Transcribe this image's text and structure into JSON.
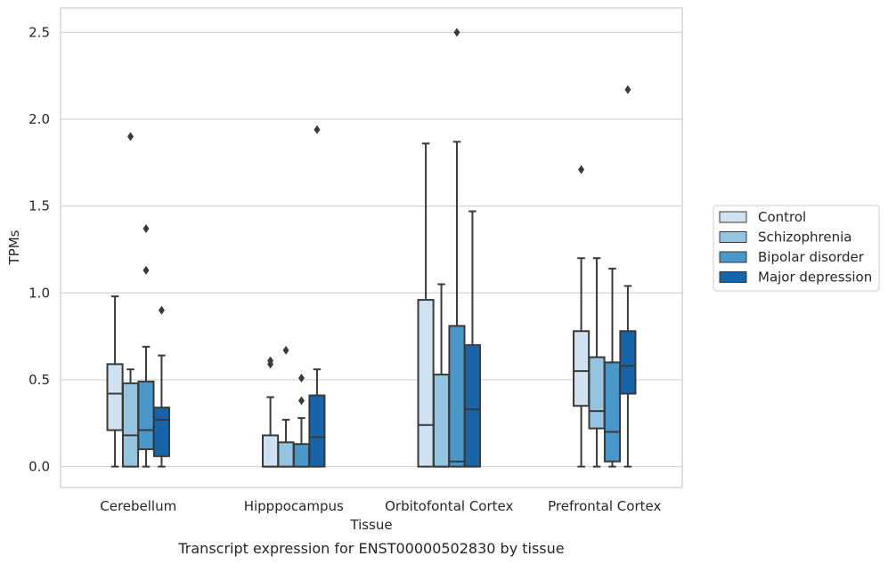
{
  "chart_data": {
    "type": "box",
    "xlabel": "Tissue",
    "ylabel": "TPMs",
    "caption": "Transcript expression for ENST00000502830 by tissue",
    "ylim": [
      -0.12,
      2.64
    ],
    "yticks": [
      0.0,
      0.5,
      1.0,
      1.5,
      2.0,
      2.5
    ],
    "ytick_labels": [
      "0.0",
      "0.5",
      "1.0",
      "1.5",
      "2.0",
      "2.5"
    ],
    "grid": "horizontal",
    "legend_position": "right",
    "categories": [
      "Cerebellum",
      "Hipppocampus",
      "Orbitofontal Cortex",
      "Prefrontal Cortex"
    ],
    "series": [
      {
        "name": "Control",
        "color": "#d0e1f2",
        "boxes": [
          {
            "whisker_low": 0.0,
            "q1": 0.21,
            "median": 0.42,
            "q3": 0.59,
            "whisker_high": 0.98,
            "outliers": []
          },
          {
            "whisker_low": 0.0,
            "q1": 0.0,
            "median": 0.0,
            "q3": 0.18,
            "whisker_high": 0.4,
            "outliers": [
              0.59,
              0.61
            ]
          },
          {
            "whisker_low": 0.0,
            "q1": 0.0,
            "median": 0.24,
            "q3": 0.96,
            "whisker_high": 1.86,
            "outliers": []
          },
          {
            "whisker_low": 0.0,
            "q1": 0.35,
            "median": 0.55,
            "q3": 0.78,
            "whisker_high": 1.2,
            "outliers": [
              1.71
            ]
          }
        ]
      },
      {
        "name": "Schizophrenia",
        "color": "#94c4df",
        "boxes": [
          {
            "whisker_low": 0.0,
            "q1": 0.0,
            "median": 0.18,
            "q3": 0.48,
            "whisker_high": 0.56,
            "outliers": [
              1.9
            ]
          },
          {
            "whisker_low": 0.0,
            "q1": 0.0,
            "median": 0.0,
            "q3": 0.14,
            "whisker_high": 0.27,
            "outliers": [
              0.67
            ]
          },
          {
            "whisker_low": 0.0,
            "q1": 0.0,
            "median": 0.0,
            "q3": 0.53,
            "whisker_high": 1.05,
            "outliers": []
          },
          {
            "whisker_low": 0.0,
            "q1": 0.22,
            "median": 0.32,
            "q3": 0.63,
            "whisker_high": 1.2,
            "outliers": []
          }
        ]
      },
      {
        "name": "Bipolar disorder",
        "color": "#4a98c9",
        "boxes": [
          {
            "whisker_low": 0.0,
            "q1": 0.1,
            "median": 0.21,
            "q3": 0.49,
            "whisker_high": 0.69,
            "outliers": [
              1.13,
              1.37
            ]
          },
          {
            "whisker_low": 0.0,
            "q1": 0.0,
            "median": 0.0,
            "q3": 0.13,
            "whisker_high": 0.28,
            "outliers": [
              0.38,
              0.51
            ]
          },
          {
            "whisker_low": 0.0,
            "q1": 0.0,
            "median": 0.03,
            "q3": 0.81,
            "whisker_high": 1.87,
            "outliers": [
              2.5
            ]
          },
          {
            "whisker_low": 0.0,
            "q1": 0.03,
            "median": 0.2,
            "q3": 0.6,
            "whisker_high": 1.14,
            "outliers": []
          }
        ]
      },
      {
        "name": "Major depression",
        "color": "#1764ab",
        "boxes": [
          {
            "whisker_low": 0.0,
            "q1": 0.06,
            "median": 0.27,
            "q3": 0.34,
            "whisker_high": 0.64,
            "outliers": [
              0.9
            ]
          },
          {
            "whisker_low": 0.0,
            "q1": 0.0,
            "median": 0.17,
            "q3": 0.41,
            "whisker_high": 0.56,
            "outliers": [
              1.94
            ]
          },
          {
            "whisker_low": 0.0,
            "q1": 0.0,
            "median": 0.33,
            "q3": 0.7,
            "whisker_high": 1.47,
            "outliers": []
          },
          {
            "whisker_low": 0.0,
            "q1": 0.42,
            "median": 0.58,
            "q3": 0.78,
            "whisker_high": 1.04,
            "outliers": [
              2.17
            ]
          }
        ]
      }
    ]
  }
}
